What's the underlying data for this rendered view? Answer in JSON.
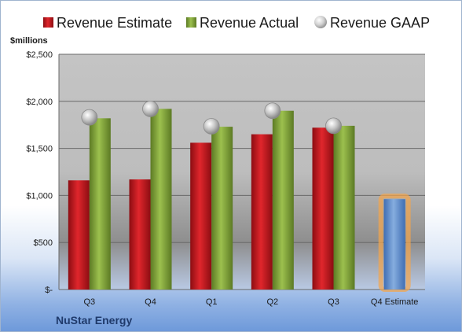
{
  "chart_data": {
    "type": "bar",
    "unit_label": "$millions",
    "company": "NuStar Energy",
    "categories": [
      "Q3",
      "Q4",
      "Q1",
      "Q2",
      "Q3",
      "Q4 Estimate"
    ],
    "series": [
      {
        "name": "Revenue Estimate",
        "kind": "bar",
        "color": "#c8141c",
        "values": [
          1160,
          1170,
          1560,
          1650,
          1720,
          null
        ]
      },
      {
        "name": "Revenue Actual",
        "kind": "bar",
        "color": "#86a83a",
        "values": [
          1820,
          1920,
          1730,
          1900,
          1740,
          null
        ]
      },
      {
        "name": "Revenue GAAP",
        "kind": "marker",
        "color": "#b0b0b0",
        "values": [
          1830,
          1920,
          1735,
          1900,
          1740,
          null
        ]
      }
    ],
    "highlight": {
      "category": "Q4 Estimate",
      "value": 960,
      "color": "#5f8fd0",
      "glow_color": "#f5a54a"
    },
    "y_ticks": [
      {
        "value": 0,
        "label": "$-"
      },
      {
        "value": 500,
        "label": "$500"
      },
      {
        "value": 1000,
        "label": "$1,000"
      },
      {
        "value": 1500,
        "label": "$1,500"
      },
      {
        "value": 2000,
        "label": "$2,000"
      },
      {
        "value": 2500,
        "label": "$2,500"
      }
    ],
    "ylim": [
      0,
      2500
    ],
    "grid": true,
    "legend_position": "top"
  }
}
